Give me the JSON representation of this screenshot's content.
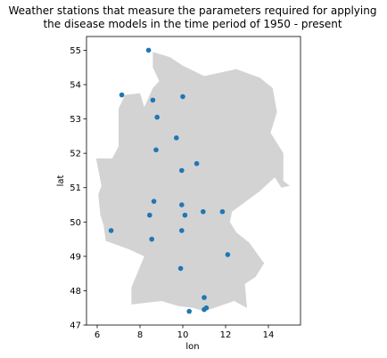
{
  "chart_data": {
    "type": "scatter",
    "title_line1": "Weather stations that measure the parameters required for applying",
    "title_line2": "the disease models in the time period of 1950 - present",
    "xlabel": "lon",
    "ylabel": "lat",
    "xlim": [
      5.5,
      15.5
    ],
    "ylim": [
      47.0,
      55.4
    ],
    "xticks": [
      6,
      8,
      10,
      12,
      14
    ],
    "yticks": [
      47,
      48,
      49,
      50,
      51,
      52,
      53,
      54,
      55
    ],
    "grid": false,
    "point_color": "#1f77b4",
    "region_color": "#d3d3d3",
    "region_outline": [
      [
        8.6,
        54.95
      ],
      [
        9.4,
        54.8
      ],
      [
        10.0,
        54.55
      ],
      [
        11.0,
        54.25
      ],
      [
        12.5,
        54.45
      ],
      [
        13.6,
        54.2
      ],
      [
        14.2,
        53.9
      ],
      [
        14.4,
        53.2
      ],
      [
        14.1,
        52.6
      ],
      [
        14.7,
        52.0
      ],
      [
        14.7,
        51.2
      ],
      [
        15.0,
        51.05
      ],
      [
        14.6,
        51.0
      ],
      [
        14.3,
        51.3
      ],
      [
        13.6,
        50.9
      ],
      [
        12.3,
        50.3
      ],
      [
        12.2,
        50.0
      ],
      [
        12.5,
        49.7
      ],
      [
        13.1,
        49.4
      ],
      [
        13.8,
        48.8
      ],
      [
        13.4,
        48.4
      ],
      [
        12.9,
        48.2
      ],
      [
        13.0,
        47.5
      ],
      [
        12.4,
        47.7
      ],
      [
        11.0,
        47.4
      ],
      [
        10.5,
        47.5
      ],
      [
        9.8,
        47.55
      ],
      [
        9.0,
        47.7
      ],
      [
        7.6,
        47.6
      ],
      [
        7.6,
        48.1
      ],
      [
        8.2,
        49.0
      ],
      [
        7.5,
        49.2
      ],
      [
        6.4,
        49.45
      ],
      [
        6.3,
        49.9
      ],
      [
        6.15,
        50.2
      ],
      [
        6.05,
        50.8
      ],
      [
        6.2,
        51.05
      ],
      [
        5.95,
        51.85
      ],
      [
        6.7,
        51.85
      ],
      [
        7.0,
        52.2
      ],
      [
        7.0,
        53.3
      ],
      [
        7.3,
        53.7
      ],
      [
        8.0,
        53.75
      ],
      [
        8.2,
        53.35
      ],
      [
        8.6,
        53.9
      ],
      [
        8.9,
        54.1
      ],
      [
        8.6,
        54.5
      ],
      [
        8.6,
        54.95
      ]
    ],
    "points": [
      {
        "x": 8.4,
        "y": 55.0
      },
      {
        "x": 7.15,
        "y": 53.7
      },
      {
        "x": 8.6,
        "y": 53.55
      },
      {
        "x": 10.0,
        "y": 53.65
      },
      {
        "x": 8.8,
        "y": 53.05
      },
      {
        "x": 9.7,
        "y": 52.45
      },
      {
        "x": 8.75,
        "y": 52.1
      },
      {
        "x": 10.65,
        "y": 51.7
      },
      {
        "x": 9.95,
        "y": 51.5
      },
      {
        "x": 8.65,
        "y": 50.6
      },
      {
        "x": 9.95,
        "y": 50.5
      },
      {
        "x": 8.45,
        "y": 50.2
      },
      {
        "x": 10.1,
        "y": 50.2
      },
      {
        "x": 10.95,
        "y": 50.3
      },
      {
        "x": 11.85,
        "y": 50.3
      },
      {
        "x": 6.65,
        "y": 49.75
      },
      {
        "x": 9.95,
        "y": 49.75
      },
      {
        "x": 8.55,
        "y": 49.5
      },
      {
        "x": 12.1,
        "y": 49.05
      },
      {
        "x": 9.9,
        "y": 48.65
      },
      {
        "x": 11.0,
        "y": 47.8
      },
      {
        "x": 10.3,
        "y": 47.4
      },
      {
        "x": 11.0,
        "y": 47.45
      },
      {
        "x": 11.1,
        "y": 47.5
      }
    ]
  }
}
